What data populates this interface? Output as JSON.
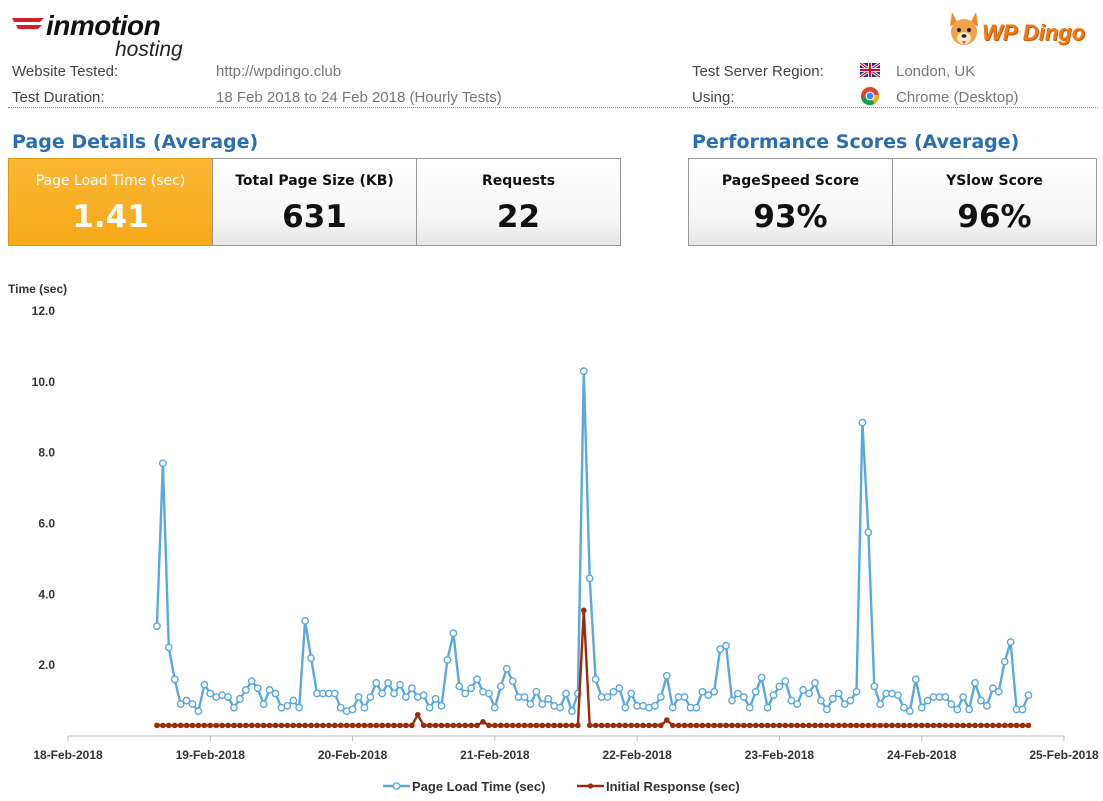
{
  "header": {
    "brand_inmotion": "inmotion",
    "brand_inmotion_sub": "hosting",
    "brand_dingo": "WP Dingo",
    "website_tested_label": "Website Tested:",
    "website_tested_value": "http://wpdingo.club",
    "test_duration_label": "Test Duration:",
    "test_duration_value": "18 Feb 2018 to 24 Feb 2018 (Hourly Tests)",
    "region_label": "Test Server Region:",
    "region_value": "London, UK",
    "using_label": "Using:",
    "using_value": "Chrome (Desktop)"
  },
  "page_details": {
    "title": "Page Details (Average)",
    "cards": [
      {
        "label": "Page Load Time (sec)",
        "value": "1.41"
      },
      {
        "label": "Total Page Size (KB)",
        "value": "631"
      },
      {
        "label": "Requests",
        "value": "22"
      }
    ]
  },
  "performance": {
    "title": "Performance Scores (Average)",
    "cards": [
      {
        "label": "PageSpeed Score",
        "value": "93%"
      },
      {
        "label": "YSlow Score",
        "value": "96%"
      }
    ]
  },
  "colors": {
    "highlight": "#f7aa18",
    "section_title": "#2a6db0",
    "series_load": "#5ba8dc",
    "series_response": "#9a2c0d"
  },
  "chart_data": {
    "type": "line",
    "ylabel": "Time (sec)",
    "ylim": [
      0,
      12
    ],
    "y_ticks": [
      "12.0",
      "10.0",
      "8.0",
      "6.0",
      "4.0",
      "2.0"
    ],
    "x_ticks": [
      "18-Feb-2018",
      "19-Feb-2018",
      "20-Feb-2018",
      "21-Feb-2018",
      "22-Feb-2018",
      "23-Feb-2018",
      "24-Feb-2018",
      "25-Feb-2018"
    ],
    "x_start": "2018-02-18 00:00",
    "x_step_hours": 1,
    "grid": false,
    "legend_position": "bottom",
    "series": [
      {
        "name": "Page Load Time (sec)",
        "x_first": "2018-02-18 15:00",
        "values": [
          3.1,
          7.7,
          2.5,
          1.6,
          0.9,
          1.0,
          0.9,
          0.7,
          1.45,
          1.2,
          1.1,
          1.15,
          1.1,
          0.8,
          1.05,
          1.3,
          1.55,
          1.35,
          0.9,
          1.3,
          1.2,
          0.8,
          0.85,
          1.0,
          0.8,
          3.25,
          2.2,
          1.2,
          1.2,
          1.2,
          1.2,
          0.8,
          0.7,
          0.75,
          1.1,
          0.8,
          1.1,
          1.5,
          1.2,
          1.5,
          1.2,
          1.45,
          1.1,
          1.35,
          1.1,
          1.15,
          0.8,
          1.05,
          0.85,
          2.15,
          2.9,
          1.4,
          1.2,
          1.35,
          1.6,
          1.25,
          1.2,
          0.8,
          1.4,
          1.9,
          1.55,
          1.1,
          1.1,
          0.9,
          1.25,
          0.9,
          1.05,
          0.85,
          0.8,
          1.2,
          0.7,
          1.2,
          10.3,
          4.45,
          1.6,
          1.1,
          1.1,
          1.25,
          1.35,
          0.8,
          1.2,
          0.85,
          0.85,
          0.8,
          0.85,
          1.1,
          1.7,
          0.8,
          1.1,
          1.1,
          0.8,
          0.8,
          1.25,
          1.15,
          1.25,
          2.45,
          2.55,
          1.0,
          1.2,
          1.1,
          0.8,
          1.25,
          1.65,
          0.8,
          1.15,
          1.4,
          1.55,
          1.0,
          0.9,
          1.3,
          1.2,
          1.5,
          1.0,
          0.75,
          1.05,
          1.2,
          0.9,
          1.0,
          1.25,
          8.85,
          5.75,
          1.4,
          0.9,
          1.2,
          1.2,
          1.15,
          0.8,
          0.7,
          1.6,
          0.8,
          1.0,
          1.1,
          1.1,
          1.1,
          0.9,
          0.75,
          1.1,
          0.75,
          1.5,
          1.0,
          0.85,
          1.35,
          1.25,
          2.1,
          2.65,
          0.75,
          0.75,
          1.15
        ]
      },
      {
        "name": "Initial Response (sec)",
        "x_first": "2018-02-18 15:00",
        "values": [
          0.3,
          0.3,
          0.3,
          0.3,
          0.3,
          0.3,
          0.3,
          0.3,
          0.3,
          0.3,
          0.3,
          0.3,
          0.3,
          0.3,
          0.3,
          0.3,
          0.3,
          0.3,
          0.3,
          0.3,
          0.3,
          0.3,
          0.3,
          0.3,
          0.3,
          0.3,
          0.3,
          0.3,
          0.3,
          0.3,
          0.3,
          0.3,
          0.3,
          0.3,
          0.3,
          0.3,
          0.3,
          0.3,
          0.3,
          0.3,
          0.3,
          0.3,
          0.3,
          0.3,
          0.6,
          0.3,
          0.3,
          0.3,
          0.3,
          0.3,
          0.3,
          0.3,
          0.3,
          0.3,
          0.3,
          0.4,
          0.3,
          0.3,
          0.3,
          0.3,
          0.3,
          0.3,
          0.3,
          0.3,
          0.3,
          0.3,
          0.3,
          0.3,
          0.3,
          0.3,
          0.3,
          0.3,
          3.55,
          0.3,
          0.3,
          0.3,
          0.3,
          0.3,
          0.3,
          0.3,
          0.3,
          0.3,
          0.3,
          0.3,
          0.3,
          0.3,
          0.45,
          0.3,
          0.3,
          0.3,
          0.3,
          0.3,
          0.3,
          0.3,
          0.3,
          0.3,
          0.3,
          0.3,
          0.3,
          0.3,
          0.3,
          0.3,
          0.3,
          0.3,
          0.3,
          0.3,
          0.3,
          0.3,
          0.3,
          0.3,
          0.3,
          0.3,
          0.3,
          0.3,
          0.3,
          0.3,
          0.3,
          0.3,
          0.3,
          0.3,
          0.3,
          0.3,
          0.3,
          0.3,
          0.3,
          0.3,
          0.3,
          0.3,
          0.3,
          0.3,
          0.3,
          0.3,
          0.3,
          0.3,
          0.3,
          0.3,
          0.3,
          0.3,
          0.3,
          0.3,
          0.3,
          0.3,
          0.3,
          0.3,
          0.3,
          0.3,
          0.3,
          0.3
        ]
      }
    ]
  }
}
